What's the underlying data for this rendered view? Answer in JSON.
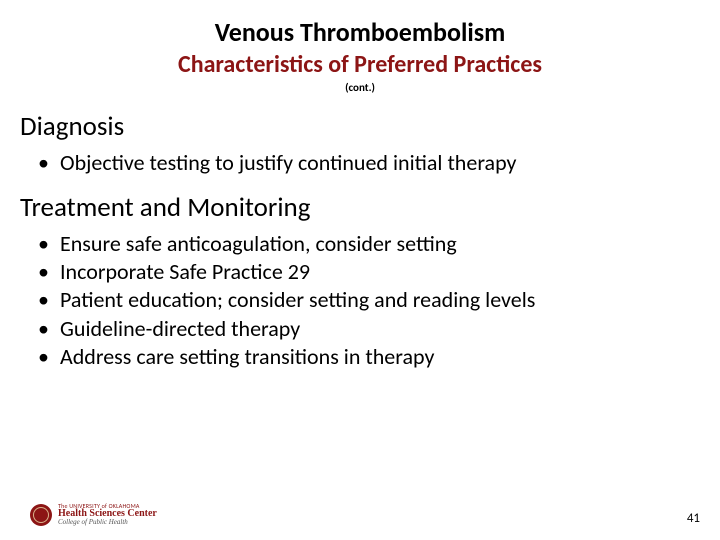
{
  "colors": {
    "accent": "#8c1515",
    "text": "#000000",
    "background": "#ffffff"
  },
  "title": "Venous Thromboembolism",
  "subtitle": "Characteristics of Preferred Practices",
  "cont": "(cont.)",
  "sections": {
    "diagnosis": {
      "heading": "Diagnosis",
      "items": [
        "Objective testing to justify continued initial therapy"
      ]
    },
    "treatment": {
      "heading": "Treatment and Monitoring",
      "items": [
        "Ensure safe anticoagulation, consider setting",
        "Incorporate Safe Practice 29",
        "Patient education; consider setting and reading levels",
        "Guideline-directed therapy",
        "Address care setting transitions in therapy"
      ]
    }
  },
  "footer": {
    "logo_line1": "The UNIVERSITY of OKLAHOMA",
    "logo_line2": "Health Sciences Center",
    "logo_line3": "College of Public Health",
    "page_number": "41"
  },
  "typography": {
    "title_fontsize": 26,
    "subtitle_fontsize": 24,
    "heading_fontsize": 27,
    "body_fontsize": 22,
    "cont_fontsize": 11,
    "page_number_fontsize": 13
  }
}
